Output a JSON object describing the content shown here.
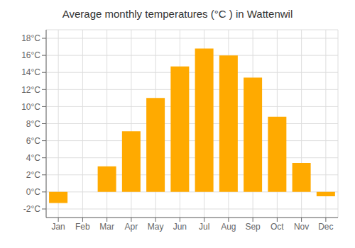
{
  "chart_data": {
    "type": "bar",
    "title": "Average monthly temperatures (°C ) in Wattenwil",
    "categories": [
      "Jan",
      "Feb",
      "Mar",
      "Apr",
      "May",
      "Jun",
      "Jul",
      "Aug",
      "Sep",
      "Oct",
      "Nov",
      "Dec"
    ],
    "values": [
      -1.3,
      0.0,
      3.0,
      7.1,
      11.0,
      14.7,
      16.8,
      16.0,
      13.4,
      8.8,
      3.4,
      -0.5
    ],
    "color": "#FFAA00",
    "ylim": [
      -3,
      19
    ],
    "yticks": [
      {
        "value": -2,
        "label": "-2°C"
      },
      {
        "value": 0,
        "label": "0°C"
      },
      {
        "value": 2,
        "label": "2°C"
      },
      {
        "value": 4,
        "label": "4°C"
      },
      {
        "value": 6,
        "label": "6°C"
      },
      {
        "value": 8,
        "label": "8°C"
      },
      {
        "value": 10,
        "label": "10°C"
      },
      {
        "value": 12,
        "label": "12°C"
      },
      {
        "value": 14,
        "label": "14°C"
      },
      {
        "value": 16,
        "label": "16°C"
      },
      {
        "value": 18,
        "label": "18°C"
      }
    ],
    "grid": true
  }
}
